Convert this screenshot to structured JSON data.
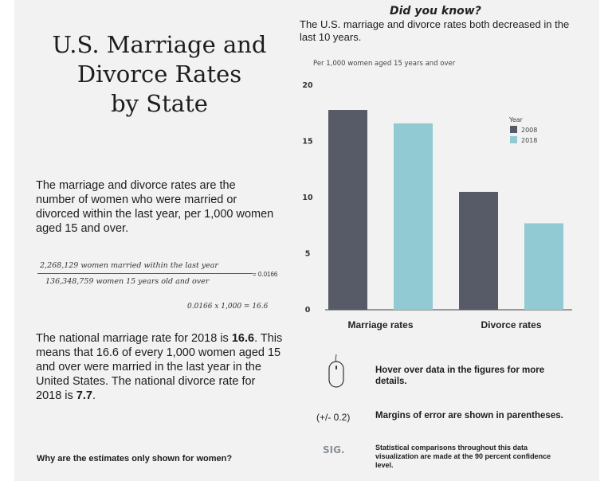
{
  "title": "U.S. Marriage and\nDivorce Rates\nby State",
  "intro": "The marriage and divorce rates are the number of women who were married or divorced within the last year, per 1,000 women aged 15 and over.",
  "formula": {
    "numerator": "2,268,129 women married within the last year",
    "denominator": "136,348,759 women 15 years old and over",
    "equals": "= 0.0166",
    "multiply": "0.0166 x 1,000 = 16.6"
  },
  "national": {
    "p1": "The national marriage rate for 2018 is ",
    "v1": "16.6",
    "p2": ". This means that 16.6 of every 1,000 women aged 15 and over were married in the last year in the United States. The national divorce rate for 2018 is ",
    "v2": "7.7",
    "p3": "."
  },
  "why_link": "Why are the estimates only shown for women?",
  "did_you_know": {
    "heading": "Did you know?",
    "text": "The U.S. marriage and divorce rates both decreased in the last 10 years."
  },
  "chart_data": {
    "type": "bar",
    "subtitle": "Per 1,000 women aged 15 years and over",
    "categories": [
      "Marriage rates",
      "Divorce rates"
    ],
    "series": [
      {
        "name": "2008",
        "values": [
          17.8,
          10.5
        ],
        "color": "#575b68"
      },
      {
        "name": "2018",
        "values": [
          16.6,
          7.7
        ],
        "color": "#92cad3"
      }
    ],
    "ylim": [
      0,
      20
    ],
    "yticks": [
      0,
      5,
      10,
      15,
      20
    ],
    "legend_title": "Year",
    "legend_position": "top-right",
    "grid": false
  },
  "info": {
    "hover": "Hover over data in the figures for more details.",
    "margin_symbol": "(+/- 0.2)",
    "margin": "Margins of error are shown in parentheses.",
    "sig_symbol": "SIG.",
    "sig": "Statistical comparisons throughout this data visualization are made at the 90 percent confidence level."
  },
  "icons": [
    "mouse-icon"
  ]
}
